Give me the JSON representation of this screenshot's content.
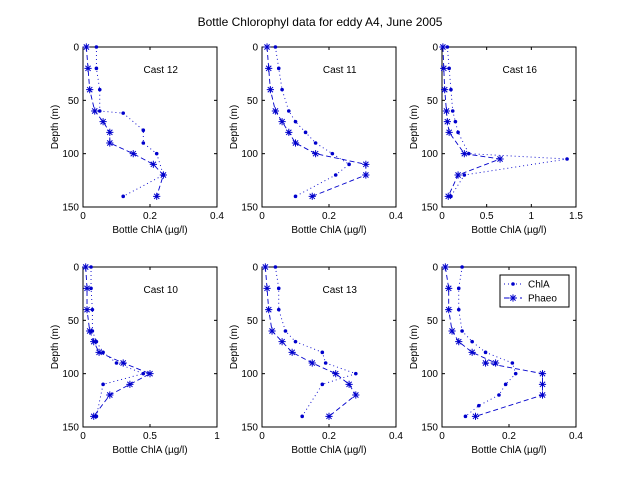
{
  "figure": {
    "title": "Bottle Chlorophyl data for eddy A4, June 2005",
    "line_color": "#0000cc"
  },
  "legend": {
    "entries": [
      "ChlA",
      "Phaeo"
    ]
  },
  "chart_data": [
    {
      "type": "line",
      "panel_label": "Cast 12",
      "xlabel": "Bottle ChlA (µg/l)",
      "ylabel": "Depth (m)",
      "xlim": [
        0,
        0.4
      ],
      "ylim": [
        0,
        150
      ],
      "xticks": [
        "0",
        "0.2",
        "0.4"
      ],
      "yticks": [
        "0",
        "50",
        "100",
        "150"
      ],
      "series": [
        {
          "name": "ChlA",
          "marker": "dot",
          "line": "dotted",
          "x": [
            0.04,
            0.04,
            0.05,
            0.05,
            0.12,
            0.18,
            0.18,
            0.22,
            0.24,
            0.12
          ],
          "y": [
            0,
            20,
            40,
            60,
            62,
            78,
            90,
            100,
            120,
            140
          ]
        },
        {
          "name": "Phaeo",
          "marker": "star",
          "line": "dashed",
          "x": [
            0.01,
            0.015,
            0.02,
            0.035,
            0.06,
            0.08,
            0.08,
            0.15,
            0.21,
            0.24,
            0.22
          ],
          "y": [
            0,
            20,
            40,
            60,
            70,
            80,
            90,
            100,
            110,
            120,
            140
          ]
        }
      ]
    },
    {
      "type": "line",
      "panel_label": "Cast 11",
      "xlabel": "Bottle ChlA (µg/l)",
      "ylabel": "Depth (m)",
      "xlim": [
        0,
        0.4
      ],
      "ylim": [
        0,
        150
      ],
      "xticks": [
        "0",
        "0.2",
        "0.4"
      ],
      "yticks": [
        "0",
        "50",
        "100",
        "150"
      ],
      "series": [
        {
          "name": "ChlA",
          "marker": "dot",
          "line": "dotted",
          "x": [
            0.04,
            0.05,
            0.06,
            0.08,
            0.1,
            0.13,
            0.16,
            0.21,
            0.26,
            0.22,
            0.1
          ],
          "y": [
            0,
            20,
            40,
            60,
            70,
            80,
            90,
            100,
            110,
            120,
            140
          ]
        },
        {
          "name": "Phaeo",
          "marker": "star",
          "line": "dashed",
          "x": [
            0.015,
            0.02,
            0.025,
            0.04,
            0.06,
            0.08,
            0.1,
            0.16,
            0.31,
            0.31,
            0.15
          ],
          "y": [
            0,
            20,
            40,
            60,
            70,
            80,
            90,
            100,
            110,
            120,
            140
          ]
        }
      ]
    },
    {
      "type": "line",
      "panel_label": "Cast 16",
      "xlabel": "Bottle ChlA (µg/l)",
      "ylabel": "Depth (m)",
      "xlim": [
        0,
        1.5
      ],
      "ylim": [
        0,
        150
      ],
      "xticks": [
        "0",
        "0.5",
        "1",
        "1.5"
      ],
      "yticks": [
        "0",
        "50",
        "100",
        "150"
      ],
      "series": [
        {
          "name": "ChlA",
          "marker": "dot",
          "line": "dotted",
          "x": [
            0.06,
            0.08,
            0.1,
            0.12,
            0.15,
            0.18,
            0.3,
            1.4,
            0.25,
            0.1
          ],
          "y": [
            0,
            20,
            40,
            60,
            70,
            80,
            100,
            105,
            120,
            140
          ]
        },
        {
          "name": "Phaeo",
          "marker": "star",
          "line": "dashed",
          "x": [
            0.01,
            0.02,
            0.03,
            0.05,
            0.06,
            0.08,
            0.25,
            0.65,
            0.18,
            0.07
          ],
          "y": [
            0,
            20,
            40,
            60,
            70,
            80,
            100,
            105,
            120,
            140
          ]
        }
      ]
    },
    {
      "type": "line",
      "panel_label": "Cast 10",
      "xlabel": "Bottle ChlA (µg/l)",
      "ylabel": "Depth (m)",
      "xlim": [
        0,
        1
      ],
      "ylim": [
        0,
        150
      ],
      "xticks": [
        "0",
        "0.5",
        "1"
      ],
      "yticks": [
        "0",
        "50",
        "100",
        "150"
      ],
      "series": [
        {
          "name": "ChlA",
          "marker": "dot",
          "line": "dotted",
          "x": [
            0.06,
            0.06,
            0.07,
            0.07,
            0.1,
            0.15,
            0.25,
            0.45,
            0.15,
            0.1
          ],
          "y": [
            0,
            20,
            40,
            60,
            70,
            80,
            90,
            100,
            110,
            140
          ]
        },
        {
          "name": "Phaeo",
          "marker": "star",
          "line": "dashed",
          "x": [
            0.02,
            0.03,
            0.03,
            0.05,
            0.08,
            0.12,
            0.3,
            0.5,
            0.35,
            0.2,
            0.08
          ],
          "y": [
            0,
            20,
            40,
            60,
            70,
            80,
            90,
            100,
            110,
            120,
            140
          ]
        }
      ]
    },
    {
      "type": "line",
      "panel_label": "Cast 13",
      "xlabel": "Bottle ChlA (µg/l)",
      "ylabel": "Depth (m)",
      "xlim": [
        0,
        0.4
      ],
      "ylim": [
        0,
        150
      ],
      "xticks": [
        "0",
        "0.2",
        "0.4"
      ],
      "yticks": [
        "0",
        "50",
        "100",
        "150"
      ],
      "series": [
        {
          "name": "ChlA",
          "marker": "dot",
          "line": "dotted",
          "x": [
            0.04,
            0.05,
            0.05,
            0.07,
            0.1,
            0.18,
            0.19,
            0.28,
            0.18,
            0.12
          ],
          "y": [
            0,
            20,
            40,
            60,
            70,
            80,
            90,
            100,
            110,
            140
          ]
        },
        {
          "name": "Phaeo",
          "marker": "star",
          "line": "dashed",
          "x": [
            0.01,
            0.015,
            0.02,
            0.03,
            0.06,
            0.09,
            0.15,
            0.22,
            0.26,
            0.28,
            0.2
          ],
          "y": [
            0,
            20,
            40,
            60,
            70,
            80,
            90,
            100,
            110,
            120,
            140
          ]
        }
      ]
    },
    {
      "type": "line",
      "panel_label": "",
      "xlabel": "Bottle ChlA (µg/l)",
      "ylabel": "Depth (m)",
      "xlim": [
        0,
        0.4
      ],
      "ylim": [
        0,
        150
      ],
      "xticks": [
        "0",
        "0.2",
        "0.4"
      ],
      "yticks": [
        "0",
        "50",
        "100",
        "150"
      ],
      "series": [
        {
          "name": "ChlA",
          "marker": "dot",
          "line": "dotted",
          "x": [
            0.06,
            0.05,
            0.05,
            0.06,
            0.09,
            0.13,
            0.21,
            0.22,
            0.19,
            0.17,
            0.11,
            0.07
          ],
          "y": [
            0,
            20,
            40,
            60,
            70,
            80,
            90,
            100,
            110,
            120,
            130,
            140
          ]
        },
        {
          "name": "Phaeo",
          "marker": "star",
          "line": "dashed",
          "x": [
            0.01,
            0.02,
            0.02,
            0.03,
            0.05,
            0.09,
            0.16,
            0.13,
            0.3,
            0.3,
            0.3,
            0.1
          ],
          "y": [
            0,
            20,
            40,
            60,
            70,
            80,
            90,
            90,
            100,
            110,
            120,
            140
          ]
        }
      ]
    }
  ]
}
